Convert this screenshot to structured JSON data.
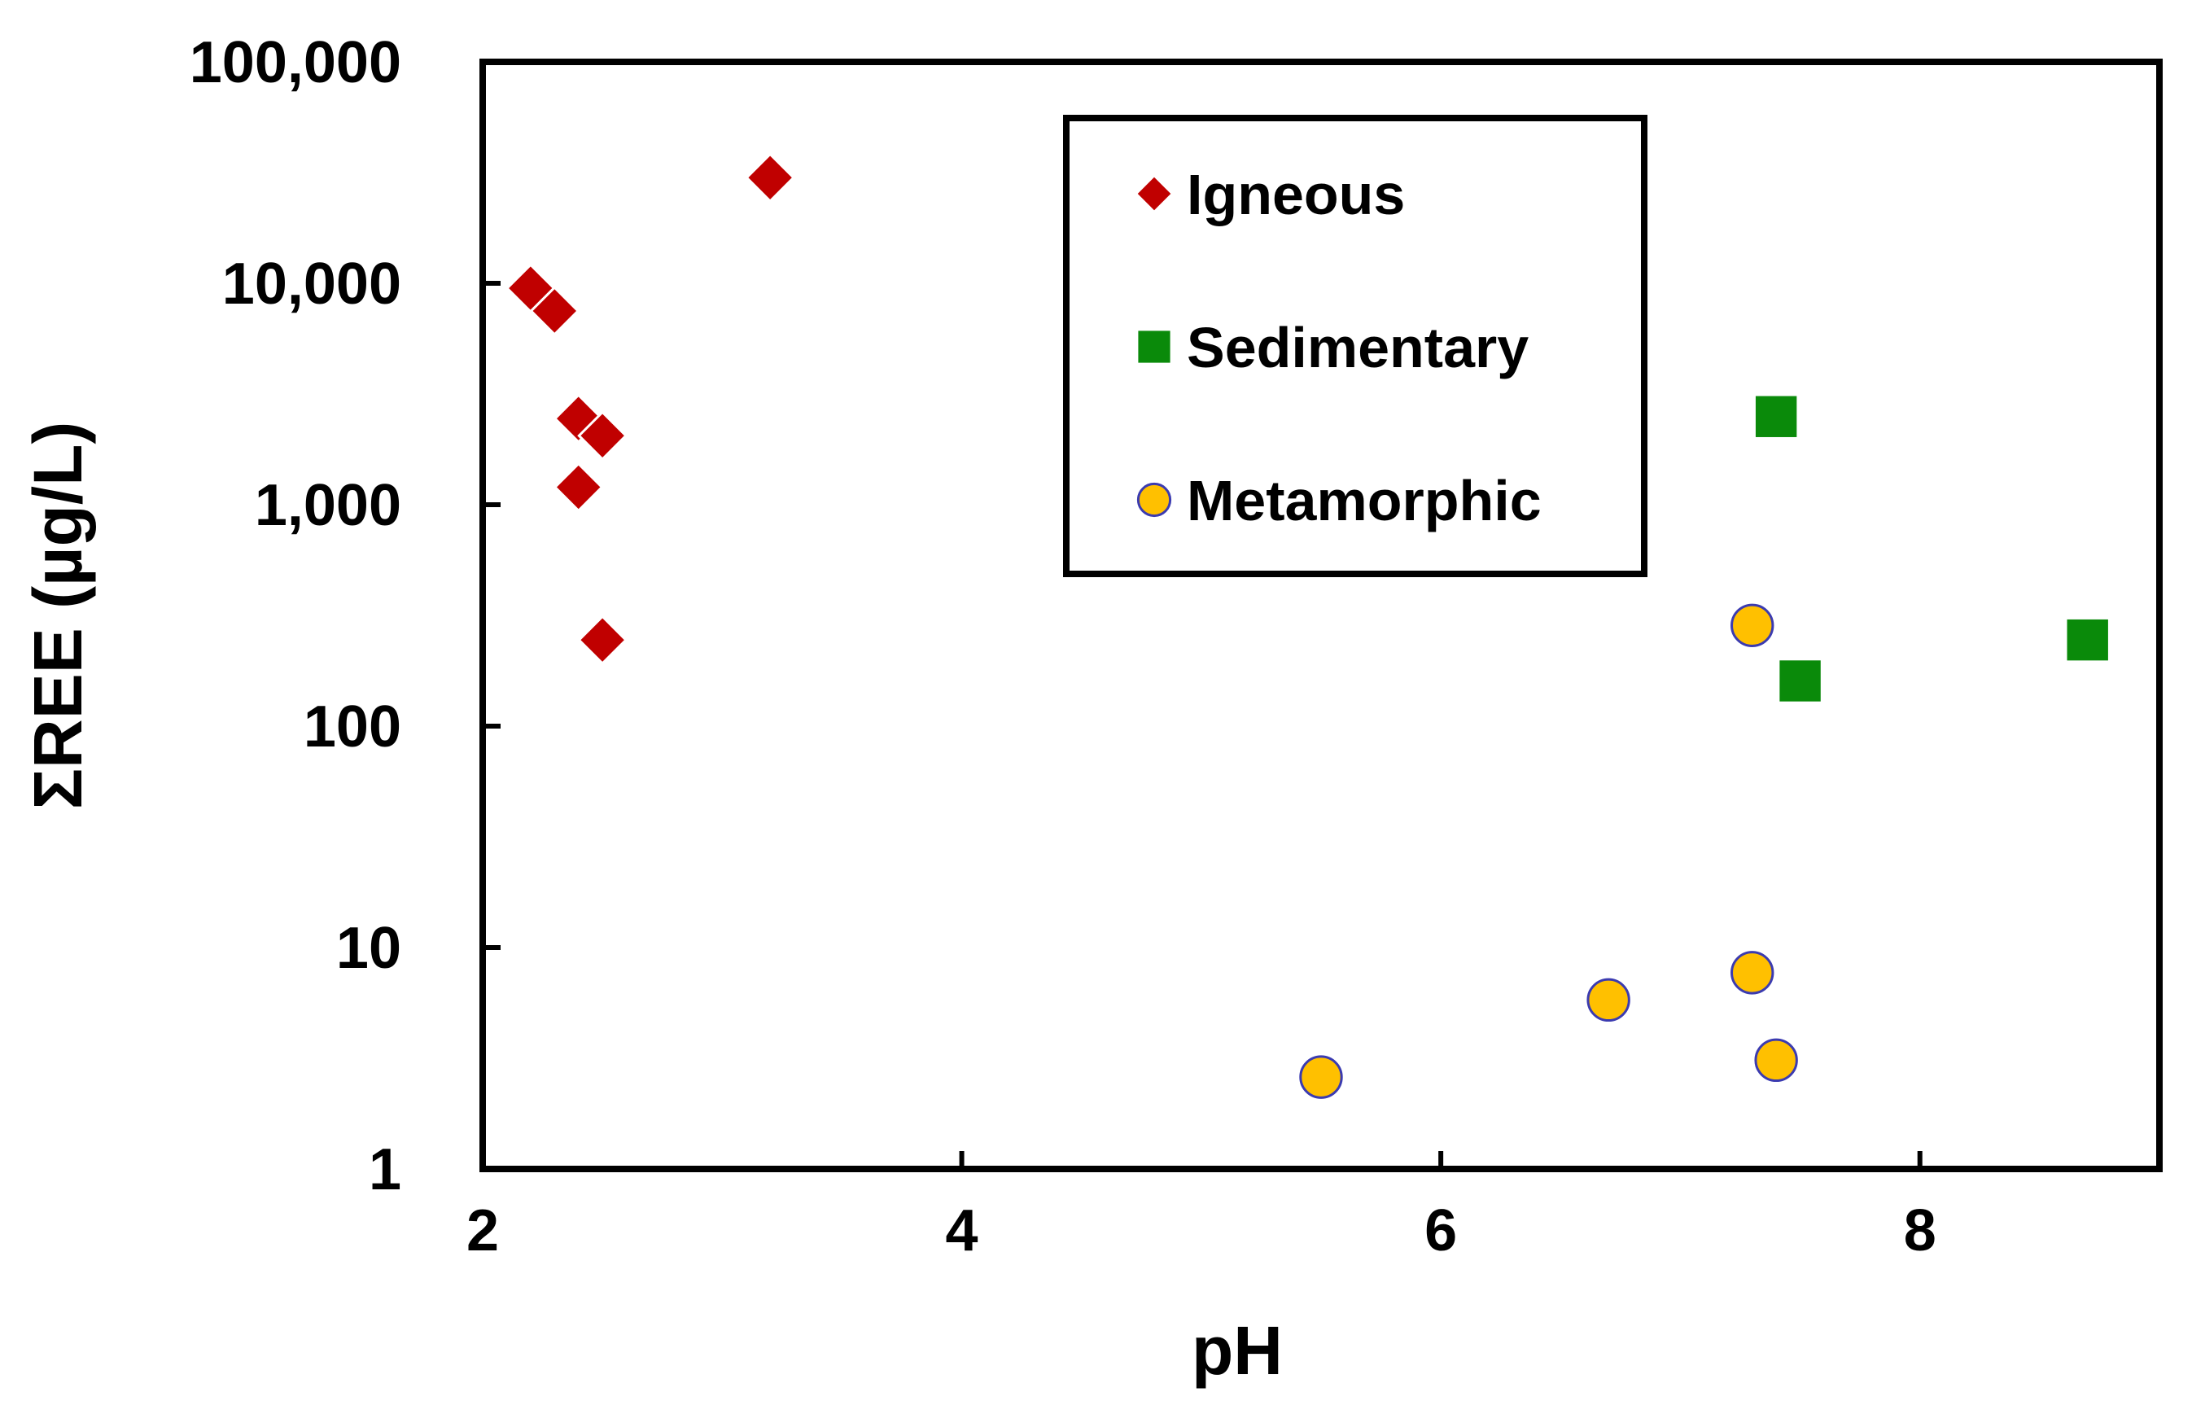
{
  "chart_data": {
    "type": "scatter",
    "xlabel": "pH",
    "ylabel": "ΣREE (µg/L)",
    "xlim": [
      2,
      9
    ],
    "ylim": [
      1,
      100000
    ],
    "yscale": "log",
    "grid": false,
    "legend_position": "top-center",
    "x_ticks": [
      {
        "value": 2,
        "label": "2"
      },
      {
        "value": 4,
        "label": "4"
      },
      {
        "value": 6,
        "label": "6"
      },
      {
        "value": 8,
        "label": "8"
      }
    ],
    "y_ticks": [
      {
        "value": 1,
        "label": "1"
      },
      {
        "value": 10,
        "label": "10"
      },
      {
        "value": 100,
        "label": "100"
      },
      {
        "value": 1000,
        "label": "1,000"
      },
      {
        "value": 10000,
        "label": "10,000"
      },
      {
        "value": 100000,
        "label": "100,000"
      }
    ],
    "series": [
      {
        "name": "Igneous",
        "marker": "diamond",
        "color": "#c00000",
        "points": [
          {
            "x": 2.2,
            "y": 9500
          },
          {
            "x": 2.3,
            "y": 7500
          },
          {
            "x": 2.4,
            "y": 2450
          },
          {
            "x": 2.5,
            "y": 2050
          },
          {
            "x": 2.4,
            "y": 1200
          },
          {
            "x": 2.5,
            "y": 245
          },
          {
            "x": 3.2,
            "y": 30000
          }
        ]
      },
      {
        "name": "Sedimentary",
        "marker": "square",
        "color": "#0a8a0a",
        "points": [
          {
            "x": 7.4,
            "y": 2500
          },
          {
            "x": 7.5,
            "y": 160
          },
          {
            "x": 8.7,
            "y": 245
          }
        ]
      },
      {
        "name": "Metamorphic",
        "marker": "circle",
        "color": "#ffc000",
        "stroke": "#3b3bb0",
        "points": [
          {
            "x": 5.5,
            "y": 2.6
          },
          {
            "x": 6.7,
            "y": 5.8
          },
          {
            "x": 7.3,
            "y": 7.7
          },
          {
            "x": 7.4,
            "y": 3.1
          },
          {
            "x": 7.3,
            "y": 285
          }
        ]
      }
    ]
  }
}
